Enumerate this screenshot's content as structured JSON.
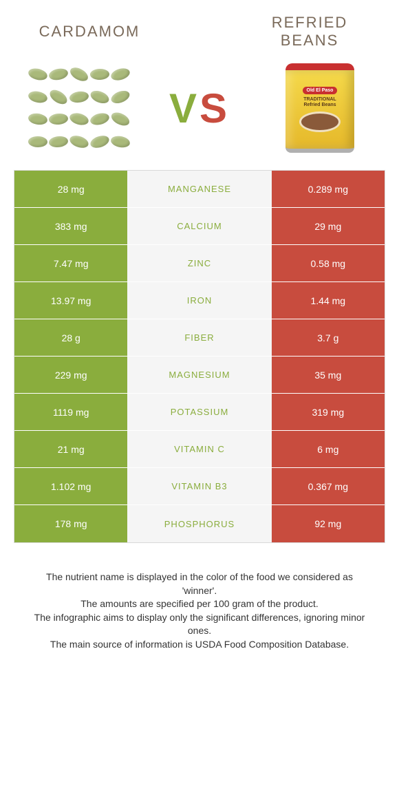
{
  "colors": {
    "left": "#8aad3d",
    "right": "#c84c3e",
    "mid_bg": "#f5f5f5",
    "title_text": "#7a6a5a",
    "border": "#d8d8d8"
  },
  "header": {
    "left_title": "Cardamom",
    "right_title": "Refried Beans",
    "vs_v": "V",
    "vs_s": "S"
  },
  "can": {
    "brand": "Old El Paso",
    "line1": "TRADITIONAL",
    "line2": "Refried Beans"
  },
  "rows": [
    {
      "left": "28 mg",
      "label": "Manganese",
      "right": "0.289 mg",
      "winner": "left"
    },
    {
      "left": "383 mg",
      "label": "Calcium",
      "right": "29 mg",
      "winner": "left"
    },
    {
      "left": "7.47 mg",
      "label": "Zinc",
      "right": "0.58 mg",
      "winner": "left"
    },
    {
      "left": "13.97 mg",
      "label": "Iron",
      "right": "1.44 mg",
      "winner": "left"
    },
    {
      "left": "28 g",
      "label": "Fiber",
      "right": "3.7 g",
      "winner": "left"
    },
    {
      "left": "229 mg",
      "label": "Magnesium",
      "right": "35 mg",
      "winner": "left"
    },
    {
      "left": "1119 mg",
      "label": "Potassium",
      "right": "319 mg",
      "winner": "left"
    },
    {
      "left": "21 mg",
      "label": "Vitamin C",
      "right": "6 mg",
      "winner": "left"
    },
    {
      "left": "1.102 mg",
      "label": "Vitamin B3",
      "right": "0.367 mg",
      "winner": "left"
    },
    {
      "left": "178 mg",
      "label": "Phosphorus",
      "right": "92 mg",
      "winner": "left"
    }
  ],
  "footnotes": [
    "The nutrient name is displayed in the color of the food we considered as 'winner'.",
    "The amounts are specified per 100 gram of the product.",
    "The infographic aims to display only the significant differences, ignoring minor ones.",
    "The main source of information is USDA Food Composition Database."
  ]
}
